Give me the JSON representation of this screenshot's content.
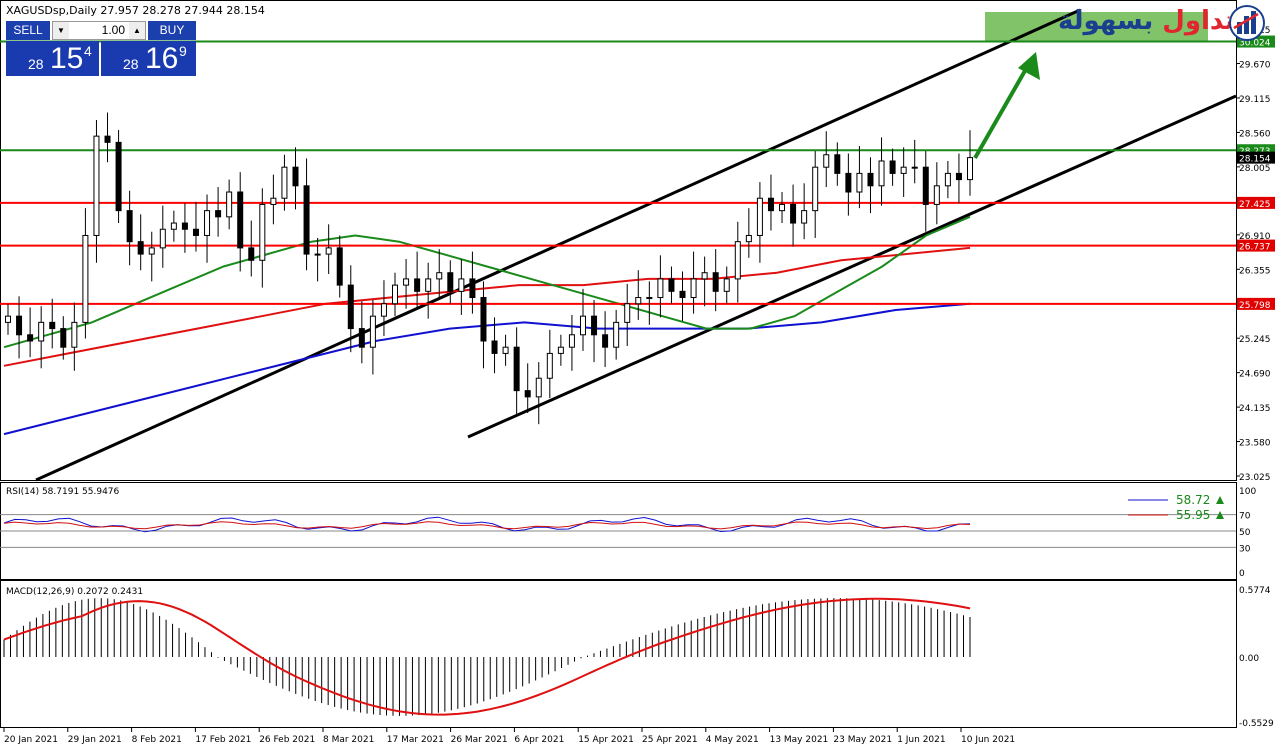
{
  "header": {
    "symbol_line": "XAGUSDsp,Daily  27.957 28.278 27.944 28.154"
  },
  "trade_panel": {
    "sell_label": "SELL",
    "buy_label": "BUY",
    "lot_value": "1.00",
    "sell_price": {
      "pre": "28",
      "mid": "15",
      "sup": "4"
    },
    "buy_price": {
      "pre": "28",
      "mid": "16",
      "sup": "9"
    }
  },
  "logo": {
    "text_red": "التداول",
    "text_blue": "بسهولة",
    "icon": "chart-shield-icon"
  },
  "price_axis": {
    "ticks": [
      "30.225",
      "29.670",
      "29.115",
      "28.560",
      "28.005",
      "26.910",
      "26.355",
      "25.800",
      "25.245",
      "24.690",
      "24.135",
      "23.580",
      "23.025"
    ],
    "highlighted": [
      {
        "value": "30.024",
        "color": "#1a8a1a"
      },
      {
        "value": "28.273",
        "color": "#1a8a1a"
      },
      {
        "value": "28.154",
        "color": "#000000"
      },
      {
        "value": "27.425",
        "color": "#e00000"
      },
      {
        "value": "26.737",
        "color": "#e00000"
      },
      {
        "value": "25.798",
        "color": "#e00000"
      }
    ]
  },
  "rsi": {
    "title": "RSI(14) 58.7191 55.9476",
    "ticks": [
      "100",
      "70",
      "50",
      "30",
      "0"
    ],
    "legend": [
      {
        "value": "58.72",
        "color": "#1010d0"
      },
      {
        "value": "55.95",
        "color": "#d01010"
      }
    ]
  },
  "macd": {
    "title": "MACD(12,26,9) 0.2072 0.2431",
    "ticks": [
      "0.5774",
      "0.00",
      "-0.5529"
    ]
  },
  "x_axis": {
    "labels": [
      "20 Jan 2021",
      "29 Jan 2021",
      "8 Feb 2021",
      "17 Feb 2021",
      "26 Feb 2021",
      "8 Mar 2021",
      "17 Mar 2021",
      "26 Mar 2021",
      "6 Apr 2021",
      "15 Apr 2021",
      "25 Apr 2021",
      "4 May 2021",
      "13 May 2021",
      "23 May 2021",
      "1 Jun 2021",
      "10 Jun 2021"
    ]
  },
  "colors": {
    "support_resistance": "#ff0000",
    "target_level": "#1a8a1a",
    "ma_fast": "#1a8a1a",
    "ma_mid": "#e01010",
    "ma_slow": "#1010d0",
    "channel": "#000000",
    "target_zone": "#6ab84f"
  },
  "chart_data": {
    "type": "candlestick",
    "symbol": "XAGUSDsp",
    "timeframe": "Daily",
    "last": {
      "open": 27.957,
      "high": 28.278,
      "low": 27.944,
      "close": 28.154
    },
    "ylim": [
      23.025,
      30.5
    ],
    "horizontal_levels": [
      30.024,
      28.273,
      27.425,
      26.737,
      25.798
    ],
    "closes": [
      25.6,
      25.3,
      25.2,
      25.5,
      25.4,
      25.1,
      25.5,
      26.9,
      28.5,
      28.4,
      27.3,
      26.8,
      26.6,
      26.7,
      27.0,
      27.1,
      27.0,
      26.9,
      27.3,
      27.2,
      27.6,
      26.7,
      26.5,
      27.4,
      27.5,
      28.0,
      27.7,
      26.6,
      26.6,
      26.7,
      26.1,
      25.4,
      25.1,
      25.6,
      25.8,
      26.1,
      26.2,
      26.0,
      26.2,
      26.3,
      26.0,
      26.2,
      25.9,
      25.2,
      25.0,
      25.1,
      24.4,
      24.3,
      24.6,
      25.0,
      25.1,
      25.3,
      25.6,
      25.3,
      25.1,
      25.5,
      25.8,
      25.9,
      25.9,
      26.2,
      26.0,
      25.9,
      26.2,
      26.3,
      26.0,
      26.2,
      26.8,
      26.9,
      27.5,
      27.3,
      27.4,
      27.1,
      27.3,
      28.0,
      28.2,
      27.9,
      27.6,
      27.9,
      27.7,
      28.1,
      27.9,
      28.0,
      28.0,
      27.4,
      27.7,
      27.9,
      27.8,
      28.154
    ],
    "ma_fast": [
      25.1,
      25.3,
      25.5,
      25.8,
      26.1,
      26.4,
      26.6,
      26.8,
      26.9,
      26.8,
      26.6,
      26.4,
      26.2,
      26.0,
      25.8,
      25.6,
      25.4,
      25.4,
      25.6,
      26.0,
      26.4,
      26.9,
      27.2
    ],
    "ma_mid": [
      24.8,
      25.0,
      25.2,
      25.4,
      25.6,
      25.8,
      25.9,
      26.0,
      26.1,
      26.1,
      26.2,
      26.2,
      26.3,
      26.5,
      26.6,
      26.7
    ],
    "ma_slow": [
      23.7,
      24.0,
      24.3,
      24.6,
      24.9,
      25.2,
      25.4,
      25.5,
      25.4,
      25.4,
      25.4,
      25.5,
      25.7,
      25.8
    ]
  }
}
